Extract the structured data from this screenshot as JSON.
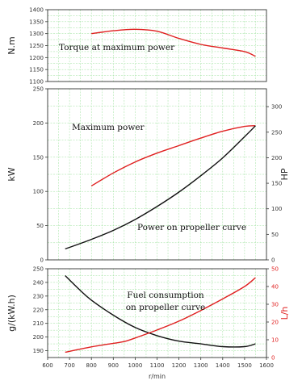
{
  "chart_data": [
    {
      "id": "torque",
      "type": "line",
      "ylabel": "N.m",
      "ylim": [
        1100,
        1400
      ],
      "yticks": [
        1100,
        1150,
        1200,
        1250,
        1300,
        1350,
        1400
      ],
      "xlim": [
        600,
        1600
      ],
      "grid": true,
      "annotations": [
        {
          "text": "Torque at maximum power"
        }
      ],
      "series": [
        {
          "color": "#e02020",
          "x": [
            800,
            900,
            1000,
            1100,
            1200,
            1300,
            1400,
            1500,
            1550
          ],
          "y": [
            1300,
            1312,
            1318,
            1310,
            1280,
            1255,
            1240,
            1225,
            1205
          ]
        }
      ]
    },
    {
      "id": "power",
      "type": "line",
      "ylabel": "kW",
      "ylim": [
        0,
        250
      ],
      "yticks": [
        0,
        50,
        100,
        150,
        200,
        250
      ],
      "ylabel_right": "HP",
      "ylim_right": [
        0,
        335
      ],
      "yticks_right": [
        0,
        50,
        100,
        150,
        200,
        250,
        300
      ],
      "xlim": [
        600,
        1600
      ],
      "grid": true,
      "annotations": [
        {
          "text": "Maximum power"
        },
        {
          "text": "Power on propeller curve"
        }
      ],
      "series": [
        {
          "color": "#e02020",
          "x": [
            800,
            900,
            1000,
            1100,
            1200,
            1300,
            1400,
            1500,
            1550
          ],
          "y": [
            108,
            127,
            143,
            156,
            167,
            178,
            188,
            195,
            196
          ]
        },
        {
          "color": "#111111",
          "x": [
            680,
            800,
            900,
            1000,
            1100,
            1200,
            1300,
            1400,
            1500,
            1550
          ],
          "y": [
            16,
            30,
            43,
            59,
            78,
            99,
            123,
            149,
            180,
            196
          ]
        }
      ]
    },
    {
      "id": "fuel",
      "type": "line",
      "ylabel": "g/(kW.h)",
      "ylim": [
        185,
        250
      ],
      "yticks": [
        190,
        200,
        210,
        220,
        230,
        240,
        250
      ],
      "ylabel_right": "L/h",
      "ylim_right": [
        0,
        50
      ],
      "yticks_right": [
        0,
        10,
        20,
        30,
        40,
        50
      ],
      "xlim": [
        600,
        1600
      ],
      "xticks": [
        600,
        700,
        800,
        900,
        1000,
        1100,
        1200,
        1300,
        1400,
        1500,
        1600
      ],
      "xlabel": "r/min",
      "grid": true,
      "annotations": [
        {
          "text": "Fuel consumption"
        },
        {
          "text": "on propeller curve"
        }
      ],
      "series": [
        {
          "color": "#111111",
          "x": [
            680,
            750,
            800,
            900,
            1000,
            1100,
            1200,
            1300,
            1400,
            1500,
            1550
          ],
          "y": [
            245,
            234,
            227,
            216,
            207,
            201,
            197,
            195,
            193,
            193,
            195
          ]
        },
        {
          "color": "#e02020",
          "axis": "right",
          "x": [
            680,
            800,
            900,
            950,
            1000,
            1100,
            1200,
            1300,
            1400,
            1500,
            1550
          ],
          "y": [
            3,
            6,
            8,
            9,
            11,
            15.5,
            20.5,
            26.5,
            33,
            40,
            45
          ]
        }
      ]
    }
  ]
}
